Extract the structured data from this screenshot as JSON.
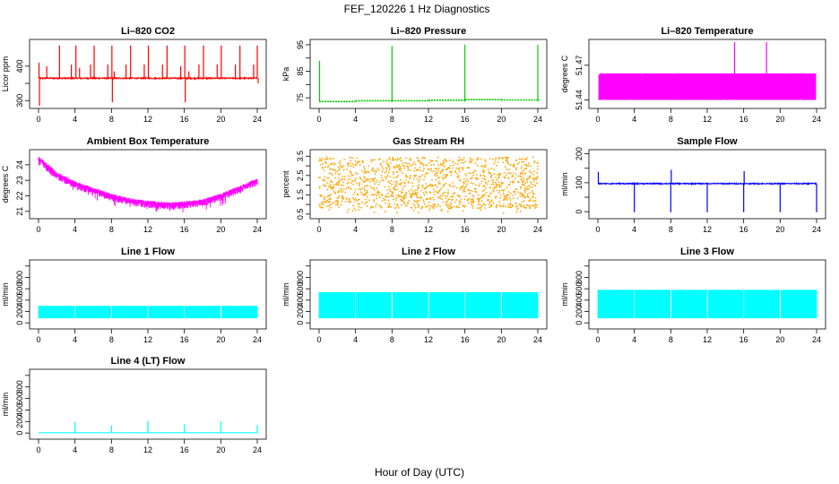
{
  "figure": {
    "title": "FEF_120226  1 Hz Diagnostics",
    "xlabel": "Hour of Day (UTC)"
  },
  "chart_data": [
    {
      "type": "line",
      "title": "Li–820 CO2",
      "ylabel": "Licor ppm",
      "color": "#ff0000",
      "xlim": [
        0,
        24
      ],
      "xticks": [
        0,
        4,
        8,
        12,
        16,
        20,
        24
      ],
      "ylim": [
        285,
        470
      ],
      "yticks": [
        300,
        350,
        400
      ],
      "ytick_labels": [
        "300",
        "",
        "400"
      ],
      "baseline": 365,
      "noise": 4,
      "spikes": [
        [
          0.05,
          410
        ],
        [
          0.1,
          285
        ],
        [
          0.9,
          400
        ],
        [
          2.3,
          460
        ],
        [
          3.6,
          405
        ],
        [
          4.1,
          460
        ],
        [
          4.5,
          395
        ],
        [
          5.7,
          405
        ],
        [
          6.1,
          460
        ],
        [
          7.6,
          405
        ],
        [
          8.05,
          460
        ],
        [
          8.1,
          295
        ],
        [
          8.3,
          385
        ],
        [
          9.6,
          405
        ],
        [
          10.1,
          460
        ],
        [
          11.6,
          405
        ],
        [
          12.05,
          460
        ],
        [
          13.6,
          405
        ],
        [
          14.1,
          460
        ],
        [
          15.6,
          400
        ],
        [
          16.05,
          460
        ],
        [
          16.1,
          295
        ],
        [
          16.5,
          385
        ],
        [
          17.6,
          405
        ],
        [
          18.1,
          460
        ],
        [
          19.6,
          405
        ],
        [
          20.05,
          460
        ],
        [
          21.6,
          405
        ],
        [
          22.1,
          460
        ],
        [
          23.6,
          405
        ],
        [
          24.0,
          460
        ],
        [
          24.1,
          350
        ]
      ]
    },
    {
      "type": "line",
      "title": "Li–820 Pressure",
      "ylabel": "kPa",
      "color": "#00cc00",
      "xlim": [
        0,
        24
      ],
      "xticks": [
        0,
        4,
        8,
        12,
        16,
        20,
        24
      ],
      "ylim": [
        72,
        96
      ],
      "yticks": [
        75,
        80,
        85,
        90,
        95
      ],
      "ytick_labels": [
        "75",
        "",
        "85",
        "",
        "95"
      ],
      "steps": [
        [
          0,
          73.6
        ],
        [
          4,
          73.9
        ],
        [
          8,
          73.9
        ],
        [
          12,
          74.1
        ],
        [
          16,
          74.3
        ],
        [
          20,
          74.2
        ],
        [
          24.2,
          74.2
        ]
      ],
      "spikes": [
        [
          0.05,
          89
        ],
        [
          8.0,
          94.5
        ],
        [
          16.0,
          95
        ],
        [
          24.0,
          95
        ]
      ]
    },
    {
      "type": "line",
      "title": "Li–820 Temperature",
      "ylabel": "degrees C",
      "color": "#ff00ff",
      "xlim": [
        0,
        24
      ],
      "xticks": [
        0,
        4,
        8,
        12,
        16,
        20,
        24
      ],
      "ylim": [
        51.435,
        51.49
      ],
      "yticks": [
        51.44,
        51.47
      ],
      "ytick_labels": [
        "51.44",
        "51.47"
      ],
      "band": [
        51.44,
        51.463
      ],
      "band_range": [
        0.1,
        23.9
      ],
      "spikes": [
        [
          15.0,
          51.49
        ],
        [
          18.5,
          51.49
        ]
      ]
    },
    {
      "type": "line",
      "title": "Ambient Box Temperature",
      "ylabel": "degrees C",
      "color": "#ff00ff",
      "xlim": [
        0,
        24
      ],
      "xticks": [
        0,
        4,
        8,
        12,
        16,
        20,
        24
      ],
      "ylim": [
        20.7,
        24.8
      ],
      "yticks": [
        21,
        22,
        23,
        24
      ],
      "ytick_labels": [
        "21",
        "22",
        "23",
        "24"
      ],
      "trend": [
        [
          0,
          24.4
        ],
        [
          1,
          23.9
        ],
        [
          2,
          23.4
        ],
        [
          4,
          22.8
        ],
        [
          6,
          22.4
        ],
        [
          8,
          22.0
        ],
        [
          10,
          21.7
        ],
        [
          12,
          21.55
        ],
        [
          14,
          21.45
        ],
        [
          16,
          21.5
        ],
        [
          18,
          21.65
        ],
        [
          20,
          22.0
        ],
        [
          22,
          22.5
        ],
        [
          24,
          23.0
        ]
      ],
      "spread": 0.5
    },
    {
      "type": "scatter",
      "title": "Gas Stream RH",
      "ylabel": "percent",
      "color": "#ffa500",
      "xlim": [
        0,
        24
      ],
      "xticks": [
        0,
        4,
        8,
        12,
        16,
        20,
        24
      ],
      "ylim": [
        0.4,
        3.7
      ],
      "yticks": [
        0.5,
        1.0,
        1.5,
        2.0,
        2.5,
        3.0,
        3.5
      ],
      "ytick_labels": [
        "0.5",
        "",
        "1.5",
        "",
        "2.5",
        "",
        "3.5"
      ],
      "band": [
        0.8,
        3.45
      ]
    },
    {
      "type": "line",
      "title": "Sample Flow",
      "ylabel": "ml/min",
      "color": "#0000ff",
      "xlim": [
        0,
        24
      ],
      "xticks": [
        0,
        4,
        8,
        12,
        16,
        20,
        24
      ],
      "ylim": [
        -15,
        205
      ],
      "yticks": [
        0,
        50,
        100,
        150,
        200
      ],
      "ytick_labels": [
        "0",
        "",
        "100",
        "",
        "200"
      ],
      "baseline": 97,
      "noise": 4,
      "spikes": [
        [
          0.05,
          138
        ],
        [
          4.0,
          -2
        ],
        [
          8.0,
          -2
        ],
        [
          8.05,
          145
        ],
        [
          12.0,
          -2
        ],
        [
          16.0,
          -2
        ],
        [
          16.05,
          140
        ],
        [
          20.0,
          -2
        ],
        [
          24.0,
          -2
        ]
      ]
    },
    {
      "type": "line",
      "title": "Line 1 Flow",
      "ylabel": "ml/min",
      "color": "#00ffff",
      "xlim": [
        0,
        24
      ],
      "xticks": [
        0,
        4,
        8,
        12,
        16,
        20,
        24
      ],
      "ylim": [
        -60,
        1060
      ],
      "yticks": [
        0,
        200,
        400,
        600,
        800,
        1000
      ],
      "ytick_labels": [
        "0",
        "200",
        "400",
        "600",
        "800",
        ""
      ],
      "band": [
        80,
        300
      ],
      "gaps": [
        3.95,
        7.95,
        11.95,
        15.95,
        19.95
      ]
    },
    {
      "type": "line",
      "title": "Line 2 Flow",
      "ylabel": "ml/min",
      "color": "#00ffff",
      "xlim": [
        0,
        24
      ],
      "xticks": [
        0,
        4,
        8,
        12,
        16,
        20,
        24
      ],
      "ylim": [
        -60,
        1060
      ],
      "yticks": [
        0,
        200,
        400,
        600,
        800,
        1000
      ],
      "ytick_labels": [
        "0",
        "200",
        "400",
        "600",
        "800",
        ""
      ],
      "band": [
        80,
        540
      ],
      "gaps": [
        3.95,
        7.95,
        11.95,
        15.95,
        19.95
      ]
    },
    {
      "type": "line",
      "title": "Line 3 Flow",
      "ylabel": "ml/min",
      "color": "#00ffff",
      "xlim": [
        0,
        24
      ],
      "xticks": [
        0,
        4,
        8,
        12,
        16,
        20,
        24
      ],
      "ylim": [
        -60,
        1060
      ],
      "yticks": [
        0,
        200,
        400,
        600,
        800,
        1000
      ],
      "ytick_labels": [
        "0",
        "200",
        "400",
        "600",
        "800",
        ""
      ],
      "band": [
        80,
        580
      ],
      "gaps": [
        3.95,
        7.95,
        11.95,
        15.95,
        19.95
      ]
    },
    {
      "type": "line",
      "title": "Line 4 (LT) Flow",
      "ylabel": "ml/min",
      "color": "#00ffff",
      "xlim": [
        0,
        24
      ],
      "xticks": [
        0,
        4,
        8,
        12,
        16,
        20,
        24
      ],
      "ylim": [
        -60,
        1060
      ],
      "yticks": [
        0,
        200,
        400,
        600,
        800,
        1000
      ],
      "ytick_labels": [
        "0",
        "200",
        "400",
        "600",
        "800",
        ""
      ],
      "baseline": 5,
      "noise": 3,
      "spikes": [
        [
          4.0,
          190
        ],
        [
          8.0,
          130
        ],
        [
          12.0,
          210
        ],
        [
          16.0,
          150
        ],
        [
          20.0,
          200
        ],
        [
          24.0,
          140
        ]
      ]
    }
  ]
}
